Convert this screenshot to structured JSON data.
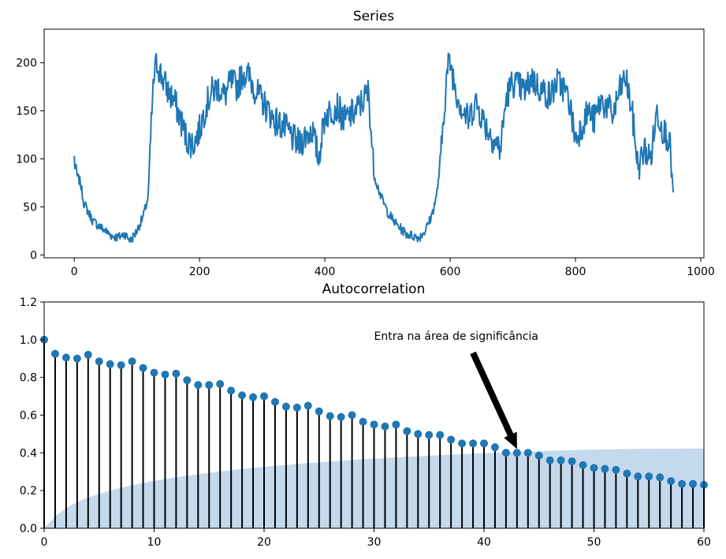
{
  "chart_data": [
    {
      "type": "line",
      "title": "Series",
      "xlabel": "",
      "ylabel": "",
      "xlim": [
        -48,
        1005
      ],
      "ylim": [
        -3,
        235
      ],
      "xticks": [
        0,
        200,
        400,
        600,
        800,
        1000
      ],
      "yticks": [
        0,
        50,
        100,
        150,
        200
      ],
      "grid": false,
      "color": "#1f77b4",
      "x": [
        0,
        5,
        10,
        15,
        20,
        30,
        40,
        50,
        60,
        70,
        80,
        90,
        100,
        110,
        118,
        124,
        128,
        132,
        140,
        150,
        160,
        170,
        180,
        190,
        200,
        210,
        220,
        230,
        240,
        250,
        260,
        270,
        280,
        290,
        300,
        310,
        320,
        330,
        340,
        350,
        360,
        370,
        380,
        390,
        400,
        410,
        420,
        430,
        440,
        450,
        460,
        470,
        478,
        485,
        490,
        500,
        510,
        520,
        530,
        540,
        550,
        560,
        570,
        578,
        585,
        590,
        596,
        600,
        610,
        620,
        630,
        640,
        650,
        660,
        670,
        680,
        690,
        700,
        710,
        720,
        730,
        740,
        750,
        760,
        770,
        780,
        790,
        800,
        810,
        820,
        830,
        840,
        850,
        860,
        870,
        880,
        890,
        900,
        910,
        920,
        930,
        940,
        950,
        956
      ],
      "values": [
        100,
        82,
        75,
        55,
        48,
        35,
        30,
        25,
        20,
        18,
        22,
        15,
        25,
        40,
        60,
        150,
        190,
        200,
        185,
        170,
        160,
        140,
        120,
        115,
        130,
        155,
        170,
        175,
        165,
        180,
        175,
        190,
        185,
        170,
        160,
        150,
        140,
        135,
        130,
        120,
        115,
        125,
        130,
        100,
        145,
        150,
        155,
        140,
        145,
        150,
        160,
        170,
        85,
        70,
        60,
        45,
        35,
        28,
        22,
        20,
        18,
        25,
        40,
        60,
        100,
        150,
        195,
        200,
        170,
        150,
        140,
        160,
        145,
        130,
        120,
        110,
        165,
        180,
        175,
        170,
        185,
        175,
        170,
        165,
        180,
        175,
        160,
        120,
        135,
        150,
        140,
        160,
        155,
        145,
        170,
        185,
        150,
        90,
        110,
        100,
        150,
        130,
        120,
        65
      ]
    },
    {
      "type": "stem",
      "title": "Autocorrelation",
      "xlabel": "",
      "ylabel": "",
      "xlim": [
        0,
        60
      ],
      "ylim": [
        0,
        1.2
      ],
      "xticks": [
        0,
        10,
        20,
        30,
        40,
        50,
        60
      ],
      "yticks": [
        "0.0",
        "0.2",
        "0.4",
        "0.6",
        "0.8",
        "1.0",
        "1.2"
      ],
      "grid": false,
      "lags": [
        0,
        1,
        2,
        3,
        4,
        5,
        6,
        7,
        8,
        9,
        10,
        11,
        12,
        13,
        14,
        15,
        16,
        17,
        18,
        19,
        20,
        21,
        22,
        23,
        24,
        25,
        26,
        27,
        28,
        29,
        30,
        31,
        32,
        33,
        34,
        35,
        36,
        37,
        38,
        39,
        40,
        41,
        42,
        43,
        44,
        45,
        46,
        47,
        48,
        49,
        50,
        51,
        52,
        53,
        54,
        55,
        56,
        57,
        58,
        59,
        60
      ],
      "values": [
        1.0,
        0.925,
        0.905,
        0.9,
        0.92,
        0.885,
        0.87,
        0.865,
        0.885,
        0.85,
        0.825,
        0.815,
        0.82,
        0.785,
        0.76,
        0.76,
        0.765,
        0.73,
        0.705,
        0.695,
        0.7,
        0.67,
        0.645,
        0.64,
        0.65,
        0.62,
        0.595,
        0.59,
        0.6,
        0.565,
        0.55,
        0.54,
        0.55,
        0.515,
        0.5,
        0.495,
        0.495,
        0.47,
        0.45,
        0.45,
        0.45,
        0.43,
        0.4,
        0.4,
        0.4,
        0.385,
        0.36,
        0.36,
        0.355,
        0.335,
        0.32,
        0.315,
        0.31,
        0.29,
        0.275,
        0.275,
        0.27,
        0.25,
        0.235,
        0.235,
        0.23
      ],
      "confidence_band_upper": [
        0.0,
        0.063,
        0.107,
        0.139,
        0.163,
        0.183,
        0.2,
        0.215,
        0.228,
        0.24,
        0.251,
        0.261,
        0.27,
        0.279,
        0.287,
        0.294,
        0.301,
        0.308,
        0.314,
        0.32,
        0.326,
        0.331,
        0.336,
        0.341,
        0.346,
        0.35,
        0.354,
        0.358,
        0.362,
        0.366,
        0.369,
        0.373,
        0.376,
        0.379,
        0.382,
        0.385,
        0.388,
        0.391,
        0.393,
        0.396,
        0.398,
        0.401,
        0.403,
        0.405,
        0.407,
        0.409,
        0.411,
        0.413,
        0.414,
        0.416,
        0.417,
        0.418,
        0.419,
        0.42,
        0.421,
        0.421,
        0.422,
        0.422,
        0.422,
        0.423,
        0.423
      ],
      "marker_color": "#1f77b4",
      "stem_color": "#000000",
      "band_color": "#c5d9ed",
      "annotation": {
        "text": "Entra na área de significância",
        "text_at": [
          30,
          1.0
        ],
        "arrow_from": [
          39,
          0.93
        ],
        "arrow_to": [
          43,
          0.42
        ]
      }
    }
  ]
}
